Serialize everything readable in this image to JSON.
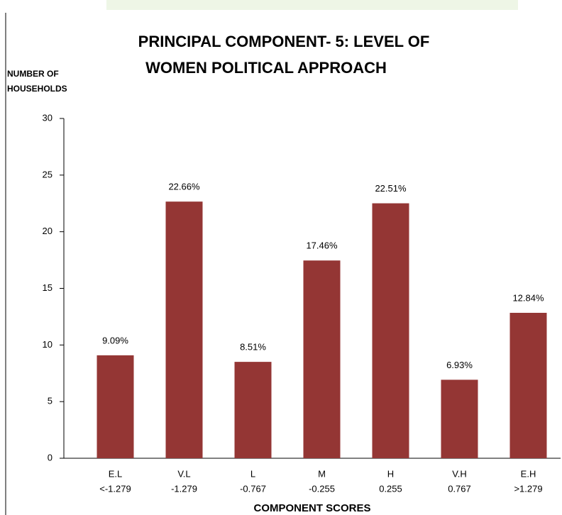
{
  "chart_data": {
    "type": "bar",
    "title": [
      "PRINCIPAL COMPONENT- 5: LEVEL OF",
      "WOMEN POLITICAL APPROACH"
    ],
    "y_label": [
      "NUMBER OF",
      "HOUSEHOLDS"
    ],
    "x_label": "COMPONENT SCORES",
    "categories": [
      "E.L",
      "V.L",
      "L",
      "M",
      "H",
      "V.H",
      "E.H"
    ],
    "category_ranges": [
      "<-1.279",
      "-1.279",
      "-0.767",
      "-0.255",
      "0.255",
      "0.767",
      ">1.279"
    ],
    "values": [
      9.09,
      22.66,
      8.51,
      17.46,
      22.51,
      6.93,
      12.84
    ],
    "value_labels": [
      "9.09%",
      "22.66%",
      "8.51%",
      "17.46%",
      "22.51%",
      "6.93%",
      "12.84%"
    ],
    "color": "#943634",
    "ylim": [
      0,
      30
    ],
    "yticks": [
      0,
      5,
      10,
      15,
      20,
      25,
      30
    ],
    "grid": false
  }
}
